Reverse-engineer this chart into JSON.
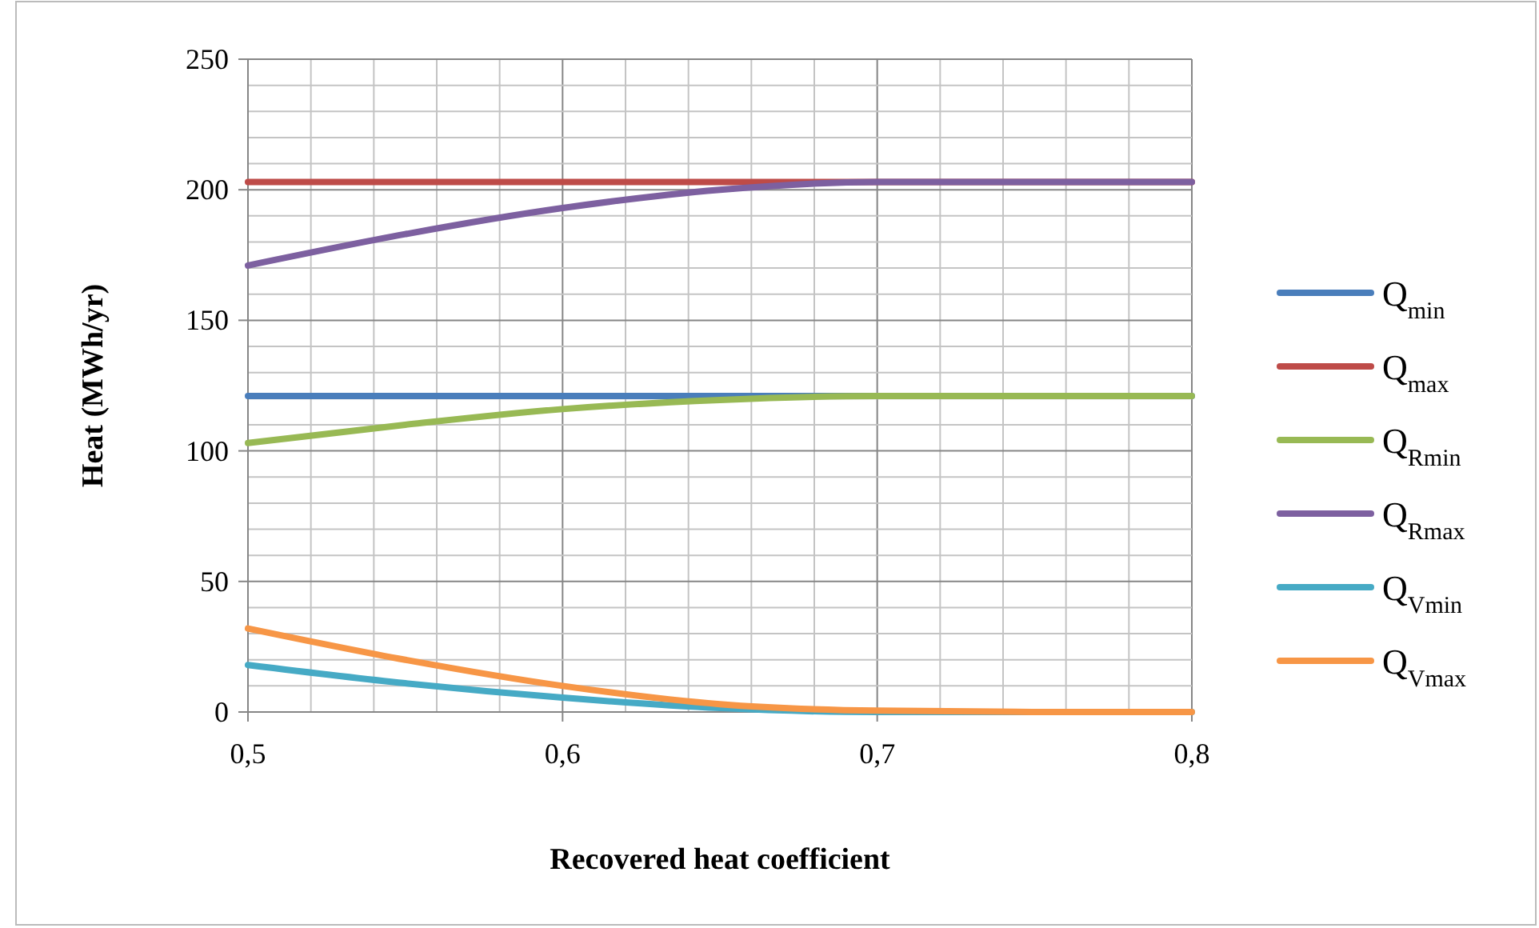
{
  "chart_data": {
    "type": "line",
    "xlabel": "Recovered heat coefficient",
    "ylabel": "Heat (MWh/yr)",
    "xlim": [
      0.5,
      0.8
    ],
    "xticks": [
      {
        "value": 0.5,
        "label": "0,5"
      },
      {
        "value": 0.52,
        "label": null
      },
      {
        "value": 0.54,
        "label": null
      },
      {
        "value": 0.56,
        "label": null
      },
      {
        "value": 0.58,
        "label": null
      },
      {
        "value": 0.6,
        "label": "0,6"
      },
      {
        "value": 0.62,
        "label": null
      },
      {
        "value": 0.64,
        "label": null
      },
      {
        "value": 0.66,
        "label": null
      },
      {
        "value": 0.68,
        "label": null
      },
      {
        "value": 0.7,
        "label": "0,7"
      },
      {
        "value": 0.72,
        "label": null
      },
      {
        "value": 0.74,
        "label": null
      },
      {
        "value": 0.76,
        "label": null
      },
      {
        "value": 0.78,
        "label": null
      },
      {
        "value": 0.8,
        "label": "0,8"
      }
    ],
    "ylim": [
      0,
      250
    ],
    "yticks": [
      0,
      {
        "value": 10,
        "label": null
      },
      {
        "value": 20,
        "label": null
      },
      {
        "value": 30,
        "label": null
      },
      {
        "value": 40,
        "label": null
      },
      50,
      {
        "value": 60,
        "label": null
      },
      {
        "value": 70,
        "label": null
      },
      {
        "value": 80,
        "label": null
      },
      {
        "value": 90,
        "label": null
      },
      100,
      {
        "value": 110,
        "label": null
      },
      {
        "value": 120,
        "label": null
      },
      {
        "value": 130,
        "label": null
      },
      {
        "value": 140,
        "label": null
      },
      150,
      {
        "value": 160,
        "label": null
      },
      {
        "value": 170,
        "label": null
      },
      {
        "value": 180,
        "label": null
      },
      {
        "value": 190,
        "label": null
      },
      200,
      {
        "value": 210,
        "label": null
      },
      {
        "value": 220,
        "label": null
      },
      {
        "value": 230,
        "label": null
      },
      {
        "value": 240,
        "label": null
      },
      250
    ],
    "grid": true,
    "legend": "right",
    "marker": "none",
    "line_style": "solid",
    "x": [
      0.5,
      0.55,
      0.6,
      0.65,
      0.7,
      0.75,
      0.8
    ],
    "series": [
      {
        "name": "Q$_{min}$",
        "color": "#4a7ebb",
        "values": [
          121,
          121,
          121,
          121,
          121,
          null,
          121
        ]
      },
      {
        "name": "Q$_{max}$",
        "color": "#be4b48",
        "values": [
          203,
          203,
          203,
          203,
          203,
          203,
          203
        ]
      },
      {
        "name": "Q$_{Rmin}$",
        "color": "#98b954",
        "values": [
          103,
          110,
          116,
          119.5,
          121,
          121,
          121
        ]
      },
      {
        "name": "Q$_{Rmax}$",
        "color": "#7d60a0",
        "values": [
          171,
          183,
          193,
          200,
          203,
          203,
          203
        ]
      },
      {
        "name": "Q$_{Vmin}$",
        "color": "#46aac5",
        "values": [
          18,
          11,
          5.5,
          1.5,
          0,
          0,
          0
        ]
      },
      {
        "name": "Q$_{Vmax}$",
        "color": "#f79646",
        "values": [
          32,
          20,
          10,
          3,
          0.5,
          0,
          0
        ]
      }
    ]
  }
}
